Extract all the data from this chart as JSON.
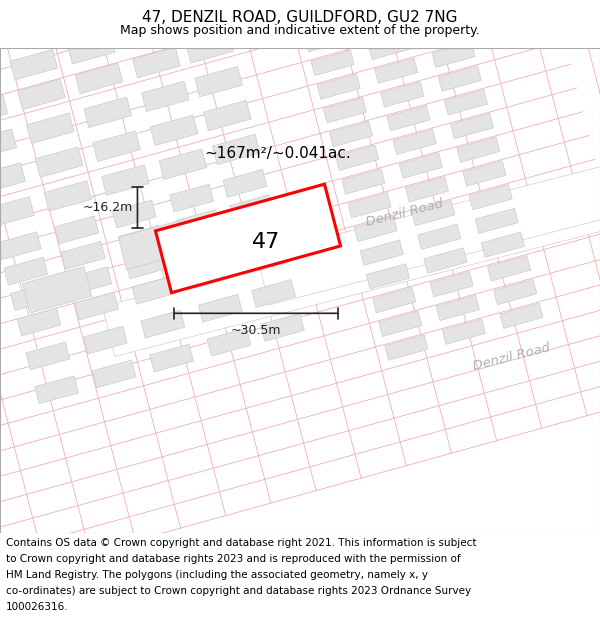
{
  "title": "47, DENZIL ROAD, GUILDFORD, GU2 7NG",
  "subtitle": "Map shows position and indicative extent of the property.",
  "footer_lines": [
    "Contains OS data © Crown copyright and database right 2021. This information is subject",
    "to Crown copyright and database rights 2023 and is reproduced with the permission of",
    "HM Land Registry. The polygons (including the associated geometry, namely x, y",
    "co-ordinates) are subject to Crown copyright and database rights 2023 Ordnance Survey",
    "100026316."
  ],
  "road_label": "Denzil Road",
  "area_label": "~167m²/~0.041ac.",
  "number_label": "47",
  "width_label": "~30.5m",
  "height_label": "~16.2m",
  "map_bg": "#f7f4f2",
  "road_color": "#ffffff",
  "grid_line_color": "#f0b0b0",
  "building_color": "#e4e4e4",
  "building_edge": "#cccccc",
  "road_edge_color": "#d0d0d0",
  "plot_fill": "#ffffff",
  "plot_edge": "#ff0000",
  "title_fontsize": 11,
  "subtitle_fontsize": 9,
  "footer_fontsize": 7.5,
  "road_label_color": "#b0b0b0",
  "dim_color": "#222222"
}
